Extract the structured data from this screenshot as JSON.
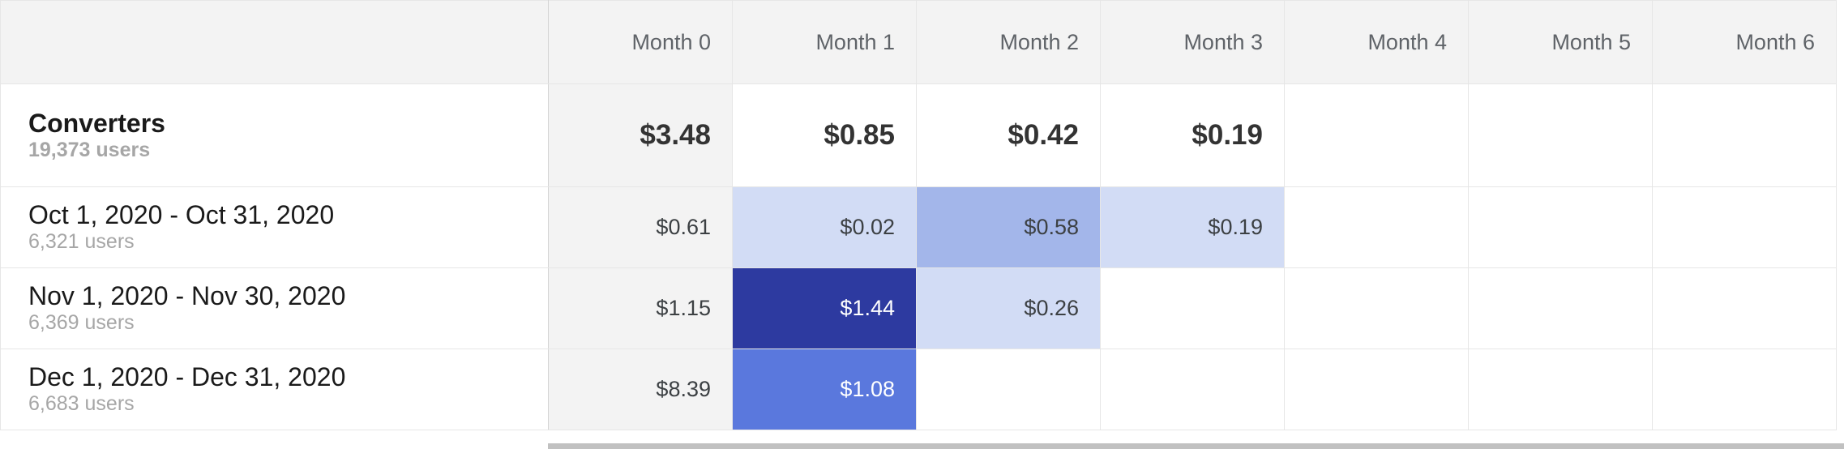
{
  "header": {
    "months": [
      "Month 0",
      "Month 1",
      "Month 2",
      "Month 3",
      "Month 4",
      "Month 5",
      "Month 6"
    ]
  },
  "summary": {
    "title": "Converters",
    "users": "19,373 users",
    "values": [
      "$3.48",
      "$0.85",
      "$0.42",
      "$0.19",
      "",
      "",
      ""
    ]
  },
  "rows": [
    {
      "label": "Oct 1, 2020 - Oct 31, 2020",
      "users": "6,321 users",
      "values": [
        "$0.61",
        "$0.02",
        "$0.58",
        "$0.19",
        "",
        "",
        ""
      ]
    },
    {
      "label": "Nov 1, 2020 - Nov 30, 2020",
      "users": "6,369 users",
      "values": [
        "$1.15",
        "$1.44",
        "$0.26",
        "",
        "",
        "",
        ""
      ]
    },
    {
      "label": "Dec 1, 2020 - Dec 31, 2020",
      "users": "6,683 users",
      "values": [
        "$8.39",
        "$1.08",
        "",
        "",
        "",
        "",
        ""
      ]
    }
  ],
  "colors": {
    "light": "#d2dcf5",
    "medium": "#a3b6ea",
    "dark": "#2d3aa0",
    "medium_bright": "#5a78dd"
  }
}
